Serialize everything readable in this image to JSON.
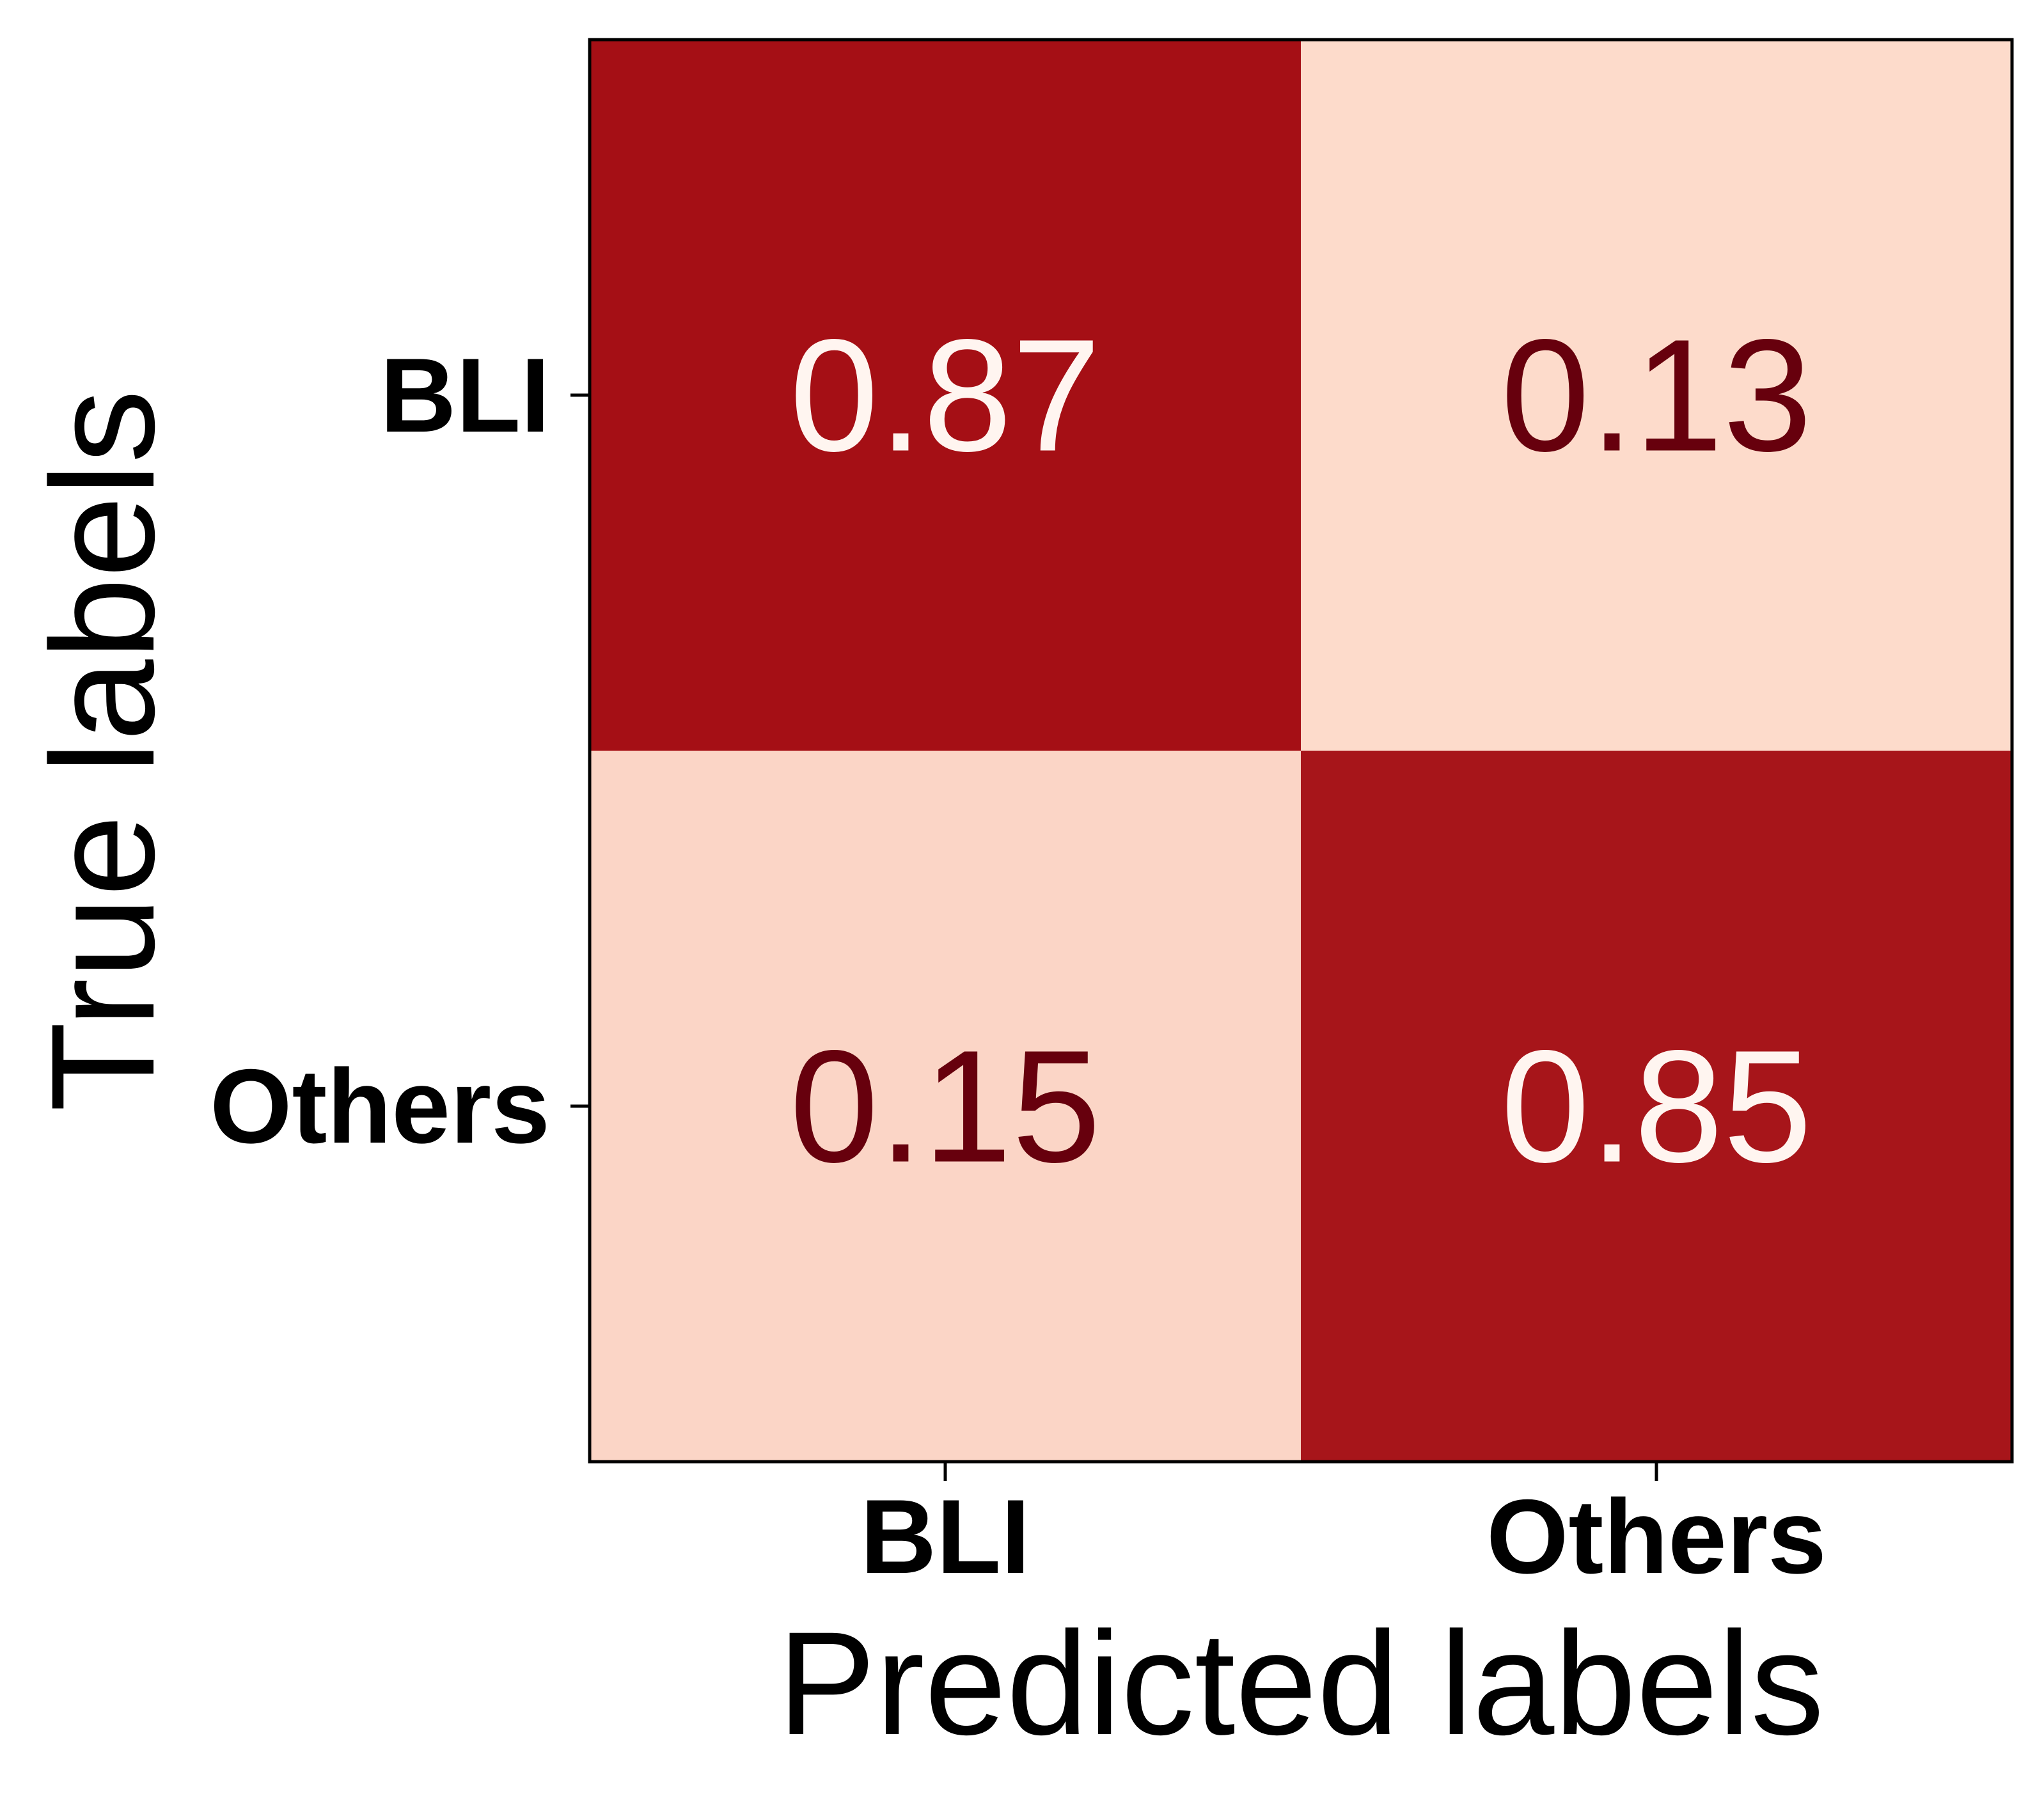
{
  "chart_data": {
    "type": "heatmap",
    "title": "",
    "xlabel": "Predicted labels",
    "ylabel": "True labels",
    "x_categories": [
      "BLI",
      "Others"
    ],
    "y_categories": [
      "BLI",
      "Others"
    ],
    "values": [
      [
        0.87,
        0.13
      ],
      [
        0.15,
        0.85
      ]
    ],
    "value_range": [
      0,
      1
    ],
    "colormap": "Reds",
    "colors": {
      "high": "#a50f15",
      "low": "#fddbcb",
      "text_on_high": "#fff5f0",
      "text_on_low": "#67000d"
    }
  }
}
